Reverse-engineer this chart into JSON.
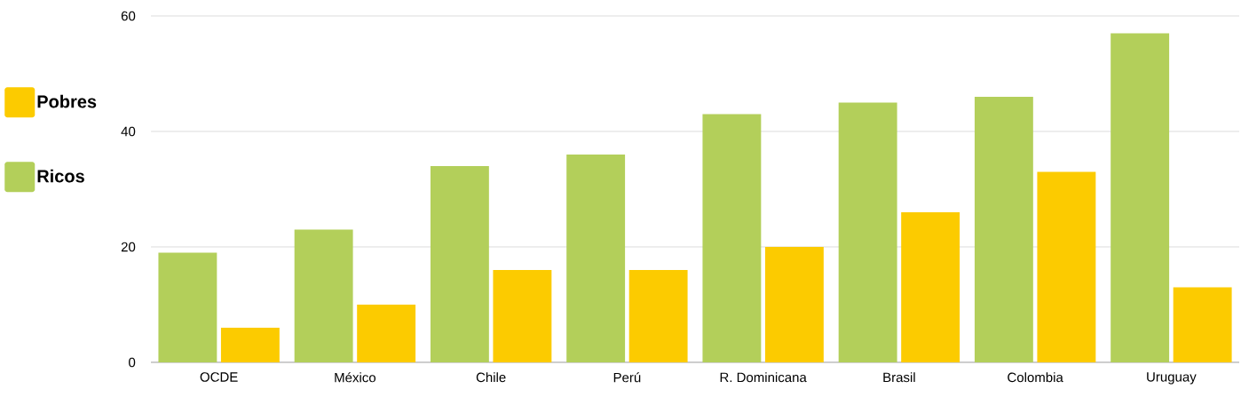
{
  "chart_data": {
    "type": "bar",
    "categories": [
      "OCDE",
      "México",
      "Chile",
      "Perú",
      "R. Dominicana",
      "Brasil",
      "Colombia",
      "Uruguay"
    ],
    "series": [
      {
        "name": "Ricos",
        "color": "#b3cf5a",
        "values": [
          19,
          23,
          34,
          36,
          43,
          45,
          46,
          57
        ]
      },
      {
        "name": "Pobres",
        "color": "#fccb00",
        "values": [
          6,
          10,
          16,
          16,
          20,
          26,
          33,
          13
        ]
      }
    ],
    "ylim": [
      0,
      60
    ],
    "yticks": [
      0,
      20,
      40,
      60
    ],
    "grid": "y",
    "legend": "left"
  }
}
